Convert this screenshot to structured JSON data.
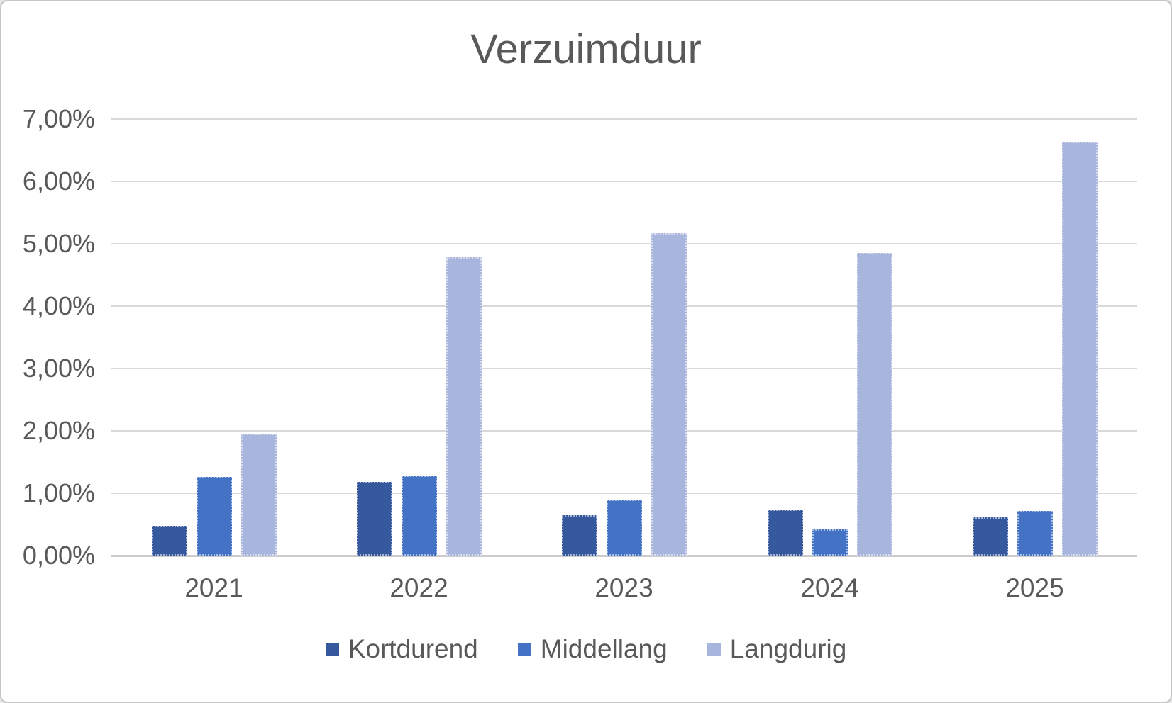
{
  "chart_data": {
    "type": "bar",
    "title": "Verzuimduur",
    "unit": "%",
    "categories": [
      "2021",
      "2022",
      "2023",
      "2024",
      "2025"
    ],
    "series": [
      {
        "name": "Kortdurend",
        "color": "#35599C",
        "values": [
          0.48,
          1.18,
          0.65,
          0.74,
          0.61
        ]
      },
      {
        "name": "Middellang",
        "color": "#4472C4",
        "values": [
          1.26,
          1.28,
          0.9,
          0.42,
          0.72
        ]
      },
      {
        "name": "Langdurig",
        "color": "#A8B5DC",
        "values": [
          1.95,
          4.78,
          5.17,
          4.85,
          6.64
        ]
      }
    ],
    "y_ticks": [
      "7,00%",
      "6,00%",
      "5,00%",
      "4,00%",
      "3,00%",
      "2,00%",
      "1,00%",
      "0,00%"
    ],
    "ylim": [
      0,
      7
    ],
    "grid": true,
    "legend_position": "bottom"
  },
  "colors": {
    "text": "#595959",
    "gridline": "#D9D9D9",
    "axis_line": "#CCCCCC",
    "background": "#FFFFFF",
    "frame_border": "#C6C6C6"
  }
}
